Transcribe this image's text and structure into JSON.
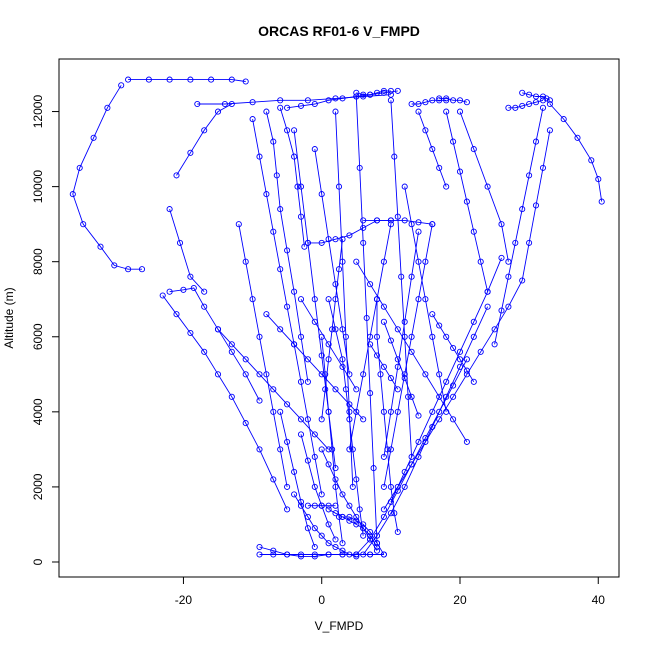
{
  "chart_data": {
    "type": "line",
    "title": "ORCAS RF01-6 V_FMPD",
    "xlabel": "V_FMPD",
    "ylabel": "Altitude (m)",
    "xlim": [
      -38,
      43
    ],
    "ylim": [
      -400,
      13400
    ],
    "x_ticks": [
      -20,
      0,
      20,
      40
    ],
    "y_ticks": [
      0,
      2000,
      4000,
      6000,
      8000,
      10000,
      12000
    ],
    "x_tick_labels": [
      "-20",
      "0",
      "20",
      "40"
    ],
    "y_tick_labels": [
      "0",
      "2000",
      "4000",
      "6000",
      "8000",
      "10000",
      "12000"
    ],
    "series_style": {
      "color": "#0000ff",
      "marker": "open-circle",
      "line": "solid"
    },
    "series": [
      {
        "x": [
          -29,
          -31,
          -33,
          -35,
          -36,
          -34.5,
          -32,
          -30,
          -28,
          -26
        ],
        "y": [
          12700,
          12100,
          11300,
          10500,
          9800,
          9000,
          8400,
          7900,
          7800,
          7800
        ]
      },
      {
        "x": [
          -28,
          -25,
          -22,
          -19,
          -16,
          -13,
          -11
        ],
        "y": [
          12850,
          12850,
          12850,
          12850,
          12850,
          12850,
          12800
        ]
      },
      {
        "x": [
          -21,
          -19,
          -17,
          -15,
          -13
        ],
        "y": [
          10300,
          10900,
          11500,
          12000,
          12200
        ]
      },
      {
        "x": [
          -22,
          -20.5,
          -19,
          -17
        ],
        "y": [
          9400,
          8500,
          7600,
          7200
        ]
      },
      {
        "x": [
          -22,
          -20,
          -18.5,
          -17,
          -15,
          -13,
          -11,
          -9
        ],
        "y": [
          7200,
          7250,
          7300,
          6800,
          6200,
          5600,
          5000,
          4300
        ]
      },
      {
        "x": [
          -23,
          -21,
          -19,
          -17,
          -15,
          -13,
          -11,
          -9,
          -7,
          -5
        ],
        "y": [
          7100,
          6600,
          6100,
          5600,
          5000,
          4400,
          3700,
          3000,
          2200,
          1400
        ]
      },
      {
        "x": [
          -18,
          -14,
          -10,
          -6,
          -2,
          2,
          6,
          10
        ],
        "y": [
          12200,
          12200,
          12250,
          12300,
          12300,
          12350,
          12400,
          12450
        ]
      },
      {
        "x": [
          -5,
          -3,
          -1,
          1,
          3,
          5,
          7,
          9,
          11
        ],
        "y": [
          12100,
          12150,
          12200,
          12300,
          12350,
          12400,
          12450,
          12500,
          12550
        ]
      },
      {
        "x": [
          -6,
          -5,
          -4,
          -3.5,
          -3,
          -2.5
        ],
        "y": [
          12100,
          11500,
          10800,
          10000,
          9200,
          8400
        ]
      },
      {
        "x": [
          -8,
          -7,
          -6.5,
          -6,
          -5,
          -4,
          -3,
          -2
        ],
        "y": [
          12000,
          11200,
          10300,
          9400,
          8300,
          7200,
          6000,
          4800
        ]
      },
      {
        "x": [
          -10,
          -9,
          -8,
          -7,
          -6,
          -5,
          -4,
          -3,
          -2,
          -1,
          0
        ],
        "y": [
          11800,
          10800,
          9800,
          8800,
          7800,
          6800,
          5800,
          4800,
          3800,
          2800,
          1800
        ]
      },
      {
        "x": [
          -12,
          -11,
          -10,
          -9,
          -8,
          -7,
          -6,
          -5
        ],
        "y": [
          9000,
          8000,
          7000,
          6000,
          5000,
          4000,
          3000,
          2000
        ]
      },
      {
        "x": [
          -4,
          -3,
          -2,
          -1,
          0,
          1,
          2
        ],
        "y": [
          11500,
          10000,
          8500,
          7000,
          5500,
          4000,
          2500
        ]
      },
      {
        "x": [
          -2,
          0,
          2,
          4,
          6,
          8,
          10
        ],
        "y": [
          8500,
          8500,
          8600,
          8700,
          8900,
          9100,
          9100
        ]
      },
      {
        "x": [
          6,
          8,
          10,
          12,
          14,
          16
        ],
        "y": [
          9100,
          9100,
          9100,
          9100,
          9050,
          9000
        ]
      },
      {
        "x": [
          5,
          6,
          7,
          8,
          9,
          10
        ],
        "y": [
          12500,
          12450,
          12450,
          12500,
          12550,
          12550
        ]
      },
      {
        "x": [
          5,
          5.5,
          6,
          6.5,
          7,
          7.5,
          8
        ],
        "y": [
          12400,
          10500,
          8500,
          6500,
          4500,
          2500,
          500
        ]
      },
      {
        "x": [
          2,
          2.5,
          3,
          3.5,
          4,
          4.5
        ],
        "y": [
          12000,
          10000,
          8000,
          6000,
          4000,
          2000
        ]
      },
      {
        "x": [
          10,
          10.5,
          11,
          11.5,
          12,
          12.5,
          13
        ],
        "y": [
          12300,
          10800,
          9200,
          7600,
          6000,
          4400,
          2800
        ]
      },
      {
        "x": [
          14,
          15,
          16,
          17,
          18
        ],
        "y": [
          12000,
          11500,
          11000,
          10500,
          10000
        ]
      },
      {
        "x": [
          13,
          14,
          15,
          16,
          17,
          18
        ],
        "y": [
          12200,
          12200,
          12250,
          12300,
          12300,
          12300
        ]
      },
      {
        "x": [
          17,
          18,
          19,
          20,
          21
        ],
        "y": [
          12350,
          12350,
          12300,
          12300,
          12250
        ]
      },
      {
        "x": [
          18,
          19,
          20,
          21,
          22,
          23,
          24
        ],
        "y": [
          12000,
          11200,
          10400,
          9600,
          8800,
          8000,
          7200
        ]
      },
      {
        "x": [
          20,
          22,
          24,
          26,
          27
        ],
        "y": [
          12000,
          11000,
          10000,
          9000,
          8000
        ]
      },
      {
        "x": [
          29,
          30,
          31,
          32,
          32.5,
          33
        ],
        "y": [
          12500,
          12450,
          12400,
          12400,
          12350,
          12300
        ]
      },
      {
        "x": [
          27,
          28,
          29,
          30,
          31,
          32
        ],
        "y": [
          12100,
          12100,
          12150,
          12200,
          12250,
          12300
        ]
      },
      {
        "x": [
          33,
          35,
          37,
          39,
          40,
          40.5
        ],
        "y": [
          12200,
          11800,
          11300,
          10700,
          10200,
          9600
        ]
      },
      {
        "x": [
          32,
          31,
          30,
          29,
          28,
          27,
          26,
          25
        ],
        "y": [
          12100,
          11200,
          10300,
          9400,
          8500,
          7600,
          6700,
          5800
        ]
      },
      {
        "x": [
          33,
          32,
          31,
          30,
          29,
          27,
          25,
          23,
          21,
          19,
          17,
          15,
          13,
          11,
          9
        ],
        "y": [
          11500,
          10500,
          9500,
          8500,
          7500,
          6800,
          6200,
          5600,
          5000,
          4400,
          3800,
          3200,
          2600,
          2000,
          1400
        ]
      },
      {
        "x": [
          26,
          24,
          22,
          20,
          18,
          16,
          14,
          12,
          10
        ],
        "y": [
          8100,
          7200,
          6400,
          5600,
          4800,
          4000,
          3200,
          2400,
          1600
        ]
      },
      {
        "x": [
          24,
          22,
          20,
          18,
          16,
          14,
          12,
          10,
          8,
          6
        ],
        "y": [
          6800,
          6000,
          5200,
          4400,
          3600,
          2800,
          2000,
          1300,
          700,
          200
        ]
      },
      {
        "x": [
          21,
          19,
          17,
          15,
          13,
          11,
          9,
          7,
          5
        ],
        "y": [
          5400,
          4700,
          4000,
          3300,
          2600,
          1900,
          1200,
          600,
          200
        ]
      },
      {
        "x": [
          16,
          15,
          14,
          13,
          12,
          11,
          10,
          9
        ],
        "y": [
          9000,
          8000,
          7000,
          6000,
          5000,
          4000,
          3000,
          2000
        ]
      },
      {
        "x": [
          8,
          8,
          8.5,
          9,
          9.5,
          10,
          10.5,
          11
        ],
        "y": [
          7000,
          6000,
          5000,
          4000,
          3000,
          2000,
          1300,
          800
        ]
      },
      {
        "x": [
          1,
          2,
          3,
          3.5,
          4,
          4.5,
          5,
          5.5,
          6
        ],
        "y": [
          7000,
          6200,
          5400,
          4600,
          3800,
          3000,
          2200,
          1400,
          700
        ]
      },
      {
        "x": [
          0,
          0.5,
          1,
          1.5,
          2,
          2.5,
          3
        ],
        "y": [
          6000,
          5000,
          4000,
          3000,
          2000,
          1200,
          500
        ]
      },
      {
        "x": [
          -9,
          -7,
          -5,
          -3,
          -1,
          1,
          3,
          5,
          7,
          9
        ],
        "y": [
          200,
          200,
          200,
          200,
          200,
          200,
          200,
          200,
          200,
          200
        ]
      },
      {
        "x": [
          -9,
          -7,
          -5,
          -3,
          -1,
          1,
          3,
          5,
          7
        ],
        "y": [
          400,
          300,
          200,
          150,
          150,
          200,
          200,
          200,
          200
        ]
      },
      {
        "x": [
          -4,
          -3,
          -2,
          -1,
          0,
          1,
          2,
          3,
          4,
          5
        ],
        "y": [
          1800,
          1500,
          1200,
          900,
          700,
          500,
          400,
          300,
          200,
          150
        ]
      },
      {
        "x": [
          -6,
          -5,
          -4,
          -3,
          -2,
          -1
        ],
        "y": [
          4000,
          3200,
          2400,
          1600,
          900,
          400
        ]
      },
      {
        "x": [
          -3,
          -2,
          -1,
          0,
          1,
          2
        ],
        "y": [
          3400,
          2700,
          2000,
          1500,
          1000,
          600
        ]
      },
      {
        "x": [
          0,
          1,
          2,
          3,
          4,
          5,
          6,
          7,
          8
        ],
        "y": [
          3000,
          2600,
          2200,
          1800,
          1500,
          1200,
          900,
          600,
          300
        ]
      },
      {
        "x": [
          3,
          4,
          5,
          6,
          7,
          8,
          9
        ],
        "y": [
          1200,
          1200,
          1100,
          1000,
          800,
          500,
          200
        ]
      },
      {
        "x": [
          1,
          2,
          3,
          4,
          5,
          6,
          7,
          8
        ],
        "y": [
          1400,
          1300,
          1200,
          1100,
          1000,
          900,
          700,
          400
        ]
      },
      {
        "x": [
          -2,
          -1,
          0,
          1,
          2
        ],
        "y": [
          1500,
          1500,
          1500,
          1500,
          1500
        ]
      },
      {
        "x": [
          7,
          8,
          9,
          10,
          11
        ],
        "y": [
          5800,
          5500,
          5200,
          4900,
          4600
        ]
      },
      {
        "x": [
          9,
          10,
          11,
          12,
          13,
          14
        ],
        "y": [
          6400,
          5900,
          5400,
          4900,
          4400,
          3900
        ]
      },
      {
        "x": [
          -15,
          -13,
          -11,
          -9,
          -7,
          -5,
          -3,
          -1,
          1
        ],
        "y": [
          6200,
          5800,
          5400,
          5000,
          4600,
          4200,
          3800,
          3400,
          3000
        ]
      },
      {
        "x": [
          -8,
          -6,
          -4,
          -2,
          0,
          2,
          4,
          6
        ],
        "y": [
          6600,
          6200,
          5800,
          5400,
          5000,
          4600,
          4200,
          3800
        ]
      },
      {
        "x": [
          5,
          7,
          9,
          11,
          13,
          15,
          17,
          19,
          21
        ],
        "y": [
          8000,
          7400,
          6800,
          6200,
          5600,
          5000,
          4400,
          3800,
          3200
        ]
      },
      {
        "x": [
          12,
          13,
          14,
          15,
          16,
          17,
          18
        ],
        "y": [
          10000,
          9000,
          8000,
          7000,
          6000,
          5000,
          4000
        ]
      },
      {
        "x": [
          -1,
          0,
          1,
          2,
          3,
          4
        ],
        "y": [
          11000,
          9800,
          8600,
          7400,
          6200,
          5000
        ]
      },
      {
        "x": [
          3,
          2.5,
          2,
          1.5,
          1,
          0.5,
          0
        ],
        "y": [
          8600,
          7800,
          7000,
          6200,
          5400,
          4600,
          3800
        ]
      },
      {
        "x": [
          16,
          17,
          18,
          19,
          20,
          21,
          22
        ],
        "y": [
          6600,
          6300,
          6000,
          5700,
          5400,
          5100,
          4800
        ]
      },
      {
        "x": [
          -3,
          -1,
          1,
          3,
          5
        ],
        "y": [
          7000,
          6400,
          5800,
          5200,
          4600
        ]
      },
      {
        "x": [
          10,
          9,
          8,
          7,
          6,
          5,
          4
        ],
        "y": [
          9000,
          8000,
          7000,
          6000,
          5000,
          4000,
          3000
        ]
      },
      {
        "x": [
          14,
          13,
          12,
          11,
          10,
          9
        ],
        "y": [
          8800,
          7600,
          6400,
          5200,
          4000,
          2800
        ]
      }
    ]
  }
}
